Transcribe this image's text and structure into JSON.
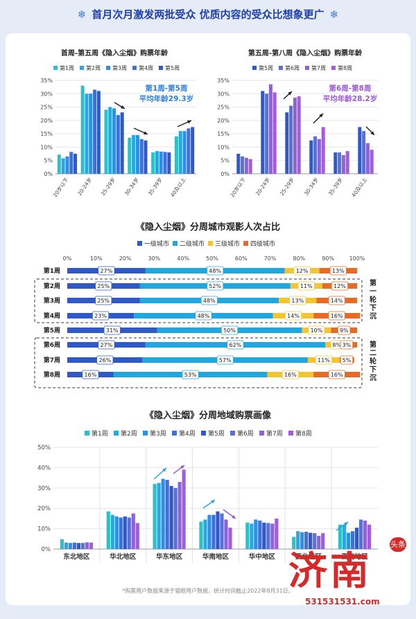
{
  "header": {
    "title": "首月次月激发两批受众 优质内容的受众比想象更广"
  },
  "footnote": "*购票用户数据来源于猫眼用户数据，统计时间截止2022年8月31日。",
  "watermark": {
    "main": "济南",
    "tag": "头条",
    "url": "531531531.com"
  },
  "colors": [
    "#2ec0c9",
    "#29a8df",
    "#2e8ee8",
    "#3f6fd8",
    "#3158c7",
    "#5c6fd6",
    "#8a64d8",
    "#a55be0"
  ],
  "chart_data": [
    {
      "type": "bar",
      "title": "首周-第五周《隐入尘烟》购票年龄",
      "categories": [
        "20岁以下",
        "20-24岁",
        "25-29岁",
        "30-34岁",
        "35-39岁",
        "40及以上"
      ],
      "ylim": [
        0,
        35
      ],
      "yticks": [
        "0%",
        "5%",
        "10%",
        "15%",
        "20%",
        "25%",
        "30%",
        "35%"
      ],
      "series": [
        {
          "name": "第1周",
          "values": [
            7.2,
            33,
            24,
            13.5,
            8,
            14
          ]
        },
        {
          "name": "第2周",
          "values": [
            5.8,
            30,
            25,
            14.5,
            8.5,
            16
          ]
        },
        {
          "name": "第3周",
          "values": [
            6.5,
            30,
            24.5,
            14.5,
            8.3,
            16
          ]
        },
        {
          "name": "第4周",
          "values": [
            8.2,
            31.5,
            22,
            13,
            8.2,
            17
          ]
        },
        {
          "name": "第5周",
          "values": [
            7.5,
            31,
            23,
            12.5,
            8,
            17.5
          ]
        }
      ],
      "annotation": [
        "第1周-第5周",
        "平均年龄29.3岁"
      ]
    },
    {
      "type": "bar",
      "title": "第五周-第八周《隐入尘烟》购票年龄",
      "categories": [
        "20岁以下",
        "20-24岁",
        "25-29岁",
        "30-34岁",
        "35-39岁",
        "40及以上"
      ],
      "ylim": [
        0,
        35
      ],
      "yticks": [
        "0%",
        "5%",
        "10%",
        "15%",
        "20%",
        "25%",
        "30%",
        "35%"
      ],
      "series": [
        {
          "name": "第5周",
          "values": [
            7.5,
            31,
            23,
            12.5,
            8,
            17.5
          ]
        },
        {
          "name": "第6周",
          "values": [
            6.5,
            30,
            25.5,
            14,
            8,
            16
          ]
        },
        {
          "name": "第7周",
          "values": [
            6,
            33.5,
            28.5,
            13,
            7,
            11.5
          ]
        },
        {
          "name": "第8周",
          "values": [
            5.5,
            30.5,
            29,
            17.5,
            8.5,
            9
          ]
        }
      ],
      "annotation": [
        "第6周-第8周",
        "平均年龄28.2岁"
      ]
    },
    {
      "type": "bar",
      "title": "《隐入尘烟》分周城市观影人次占比",
      "stacked": true,
      "orientation": "horizontal",
      "categories": [
        "第1周",
        "第2周",
        "第3周",
        "第4周",
        "第5周",
        "第6周",
        "第7周",
        "第8周"
      ],
      "xticks": [
        "0%",
        "10%",
        "20%",
        "30%",
        "40%",
        "50%",
        "60%",
        "70%",
        "80%",
        "90%",
        "100%"
      ],
      "series": [
        {
          "name": "一级城市",
          "values": [
            27,
            25,
            25,
            23,
            31,
            27,
            26,
            16
          ]
        },
        {
          "name": "二级城市",
          "values": [
            48,
            52,
            48,
            48,
            50,
            62,
            57,
            53
          ]
        },
        {
          "name": "三级城市",
          "values": [
            12,
            11,
            13,
            14,
            10,
            8,
            11,
            16
          ]
        },
        {
          "name": "四级城市",
          "values": [
            13,
            12,
            14,
            16,
            9,
            3,
            5,
            16
          ]
        }
      ],
      "labels": [
        [
          "27%",
          "48%",
          "12%",
          "13%"
        ],
        [
          "25%",
          "52%",
          "11%",
          "12%"
        ],
        [
          "25%",
          "48%",
          "13%",
          "14%"
        ],
        [
          "23%",
          "48%",
          "14%",
          "16%"
        ],
        [
          "31%",
          "50%",
          "10%",
          "9%"
        ],
        [
          "27%",
          "62%",
          "8%",
          "3%"
        ],
        [
          "26%",
          "57%",
          "11%",
          "5%"
        ],
        [
          "16%",
          "53%",
          "16%",
          "16%"
        ]
      ],
      "groups": [
        "第一轮下沉",
        "第二轮下沉"
      ]
    },
    {
      "type": "bar",
      "title": "《隐入尘烟》分周地域购票画像",
      "categories": [
        "东北地区",
        "华北地区",
        "华东地区",
        "华南地区",
        "华中地区",
        "西北地区",
        "西南地区"
      ],
      "ylim": [
        0,
        50
      ],
      "yticks": [
        "0%",
        "10%",
        "20%",
        "30%",
        "40%",
        "50%"
      ],
      "series": [
        {
          "name": "第1周",
          "values": [
            4.8,
            18.5,
            32,
            13.5,
            13,
            6,
            12
          ]
        },
        {
          "name": "第2周",
          "values": [
            3.2,
            16.8,
            32.5,
            14.5,
            12.5,
            8.8,
            12
          ]
        },
        {
          "name": "第3周",
          "values": [
            3,
            16,
            34.5,
            16.8,
            14.5,
            8.3,
            8
          ]
        },
        {
          "name": "第4周",
          "values": [
            3.2,
            15.5,
            34,
            16.8,
            14,
            8.5,
            8.8
          ]
        },
        {
          "name": "第5周",
          "values": [
            3,
            16,
            31,
            18.5,
            13,
            8,
            10.5
          ]
        },
        {
          "name": "第6周",
          "values": [
            3,
            15.5,
            30,
            17.5,
            12.8,
            7.8,
            14.5
          ]
        },
        {
          "name": "第7周",
          "values": [
            3.3,
            17.5,
            33,
            14.5,
            12.5,
            6.5,
            14
          ]
        },
        {
          "name": "第8周",
          "values": [
            3.2,
            12.8,
            39,
            10.5,
            15,
            7.8,
            12
          ]
        }
      ]
    }
  ]
}
